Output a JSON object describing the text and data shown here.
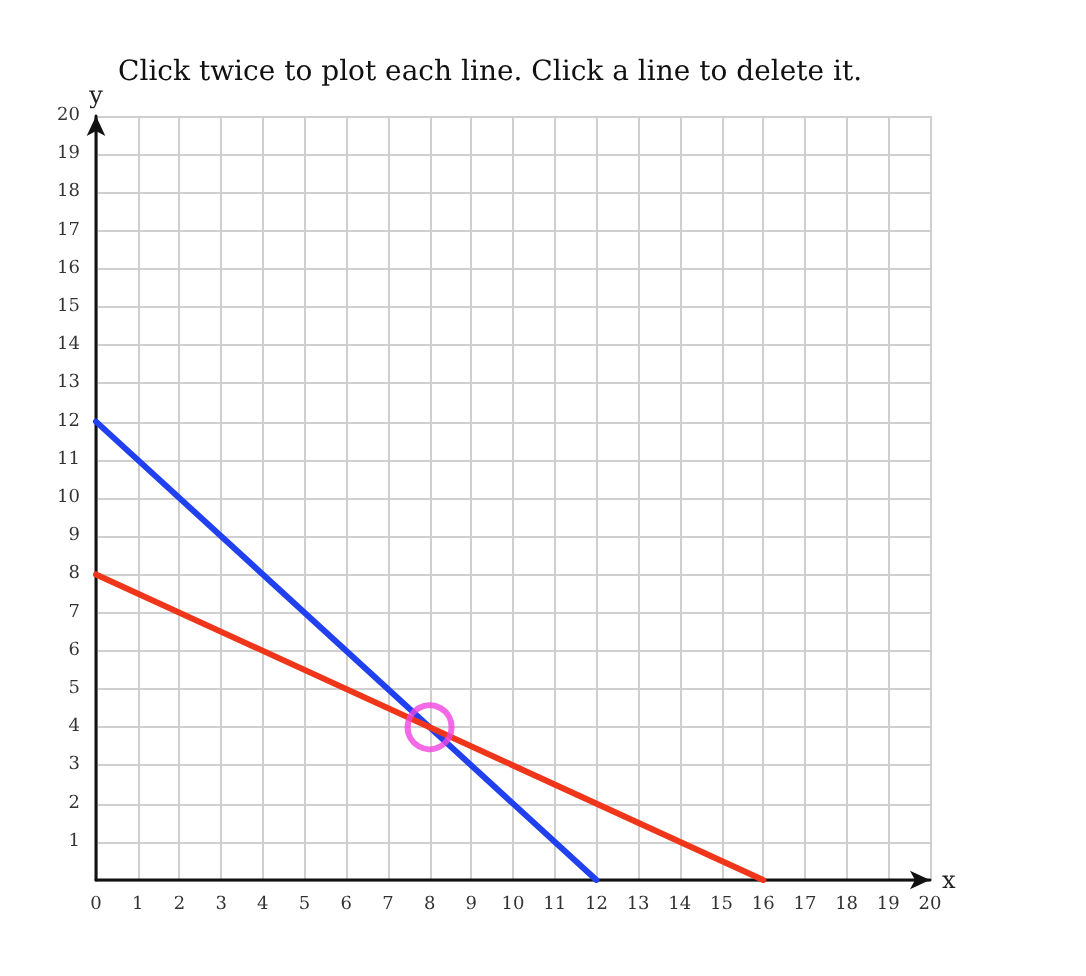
{
  "chart_data": {
    "type": "line",
    "title": "Click twice to plot each line. Click a line to delete it.",
    "xlabel": "x",
    "ylabel": "y",
    "xlim": [
      0,
      20
    ],
    "ylim": [
      0,
      20
    ],
    "xticks": [
      0,
      1,
      2,
      3,
      4,
      5,
      6,
      7,
      8,
      9,
      10,
      11,
      12,
      13,
      14,
      15,
      16,
      17,
      18,
      19,
      20
    ],
    "yticks": [
      {
        "value": 0,
        "label": null
      },
      1,
      2,
      3,
      4,
      5,
      6,
      7,
      8,
      9,
      10,
      11,
      12,
      13,
      14,
      15,
      16,
      17,
      18,
      19,
      20
    ],
    "grid": true,
    "marker": "none",
    "line_style": "solid",
    "series": [
      {
        "color": "#2141f0",
        "x": [
          0,
          12
        ],
        "values": [
          12,
          0
        ]
      },
      {
        "color": "#f0361a",
        "x": [
          0,
          16
        ],
        "values": [
          8,
          0
        ]
      },
      {
        "type": "scatter",
        "marker": "circle",
        "color": "#f044e0",
        "x": [
          8
        ],
        "values": [
          4
        ]
      }
    ]
  }
}
